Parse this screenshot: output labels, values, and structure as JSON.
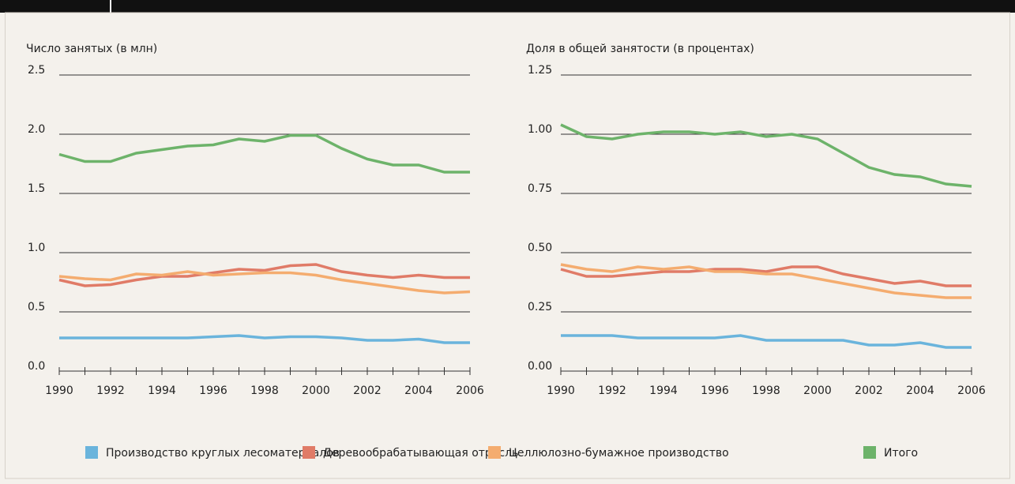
{
  "chart_data": [
    {
      "type": "line",
      "title": "Число занятых (в млн)",
      "x": [
        1990,
        1991,
        1992,
        1993,
        1994,
        1995,
        1996,
        1997,
        1998,
        1999,
        2000,
        2001,
        2002,
        2003,
        2004,
        2005,
        2006
      ],
      "xlim": [
        1990,
        2006
      ],
      "xticks": [
        1990,
        1992,
        1994,
        1996,
        1998,
        2000,
        2002,
        2004,
        2006
      ],
      "ylim": [
        0,
        2.5
      ],
      "yticks": [
        {
          "value": 0,
          "label": "0.0"
        },
        0.5,
        {
          "value": 1,
          "label": "1.0"
        },
        1.5,
        {
          "value": 2,
          "label": "2.0"
        },
        2.5
      ],
      "grid": true,
      "series": [
        {
          "name": "Производство круглых лесоматериалов",
          "color": "#6ab4dc",
          "values": [
            0.28,
            0.28,
            0.28,
            0.28,
            0.28,
            0.28,
            0.29,
            0.3,
            0.28,
            0.29,
            0.29,
            0.28,
            0.26,
            0.26,
            0.27,
            0.24,
            0.24
          ]
        },
        {
          "name": "Деревообрабатывающая отрасль",
          "color": "#e07b67",
          "values": [
            0.77,
            0.72,
            0.73,
            0.77,
            0.8,
            0.8,
            0.83,
            0.86,
            0.85,
            0.89,
            0.9,
            0.84,
            0.81,
            0.79,
            0.81,
            0.79,
            0.79
          ]
        },
        {
          "name": "Целлюлозно-бумажное производство",
          "color": "#f4ac6f",
          "values": [
            0.8,
            0.78,
            0.77,
            0.82,
            0.81,
            0.84,
            0.81,
            0.82,
            0.83,
            0.83,
            0.81,
            0.77,
            0.74,
            0.71,
            0.68,
            0.66,
            0.67
          ]
        },
        {
          "name": "Итого",
          "color": "#6db36a",
          "values": [
            1.83,
            1.77,
            1.77,
            1.84,
            1.87,
            1.9,
            1.91,
            1.96,
            1.94,
            1.99,
            1.99,
            1.88,
            1.79,
            1.74,
            1.74,
            1.68,
            1.68
          ]
        }
      ]
    },
    {
      "type": "line",
      "title": "Доля в общей занятости (в процентах)",
      "x": [
        1990,
        1991,
        1992,
        1993,
        1994,
        1995,
        1996,
        1997,
        1998,
        1999,
        2000,
        2001,
        2002,
        2003,
        2004,
        2005,
        2006
      ],
      "xlim": [
        1990,
        2006
      ],
      "xticks": [
        1990,
        1992,
        1994,
        1996,
        1998,
        2000,
        2002,
        2004,
        2006
      ],
      "ylim": [
        0,
        1.25
      ],
      "yticks": [
        {
          "value": 0,
          "label": "0.00"
        },
        0.25,
        {
          "value": 0.5,
          "label": "0.50"
        },
        0.75,
        {
          "value": 1,
          "label": "1.00"
        },
        1.25
      ],
      "grid": true,
      "series": [
        {
          "name": "Производство круглых лесоматериалов",
          "color": "#6ab4dc",
          "values": [
            0.15,
            0.15,
            0.15,
            0.14,
            0.14,
            0.14,
            0.14,
            0.15,
            0.13,
            0.13,
            0.13,
            0.13,
            0.11,
            0.11,
            0.12,
            0.1,
            0.1
          ]
        },
        {
          "name": "Деревообрабатывающая отрасль",
          "color": "#e07b67",
          "values": [
            0.43,
            0.4,
            0.4,
            0.41,
            0.42,
            0.42,
            0.43,
            0.43,
            0.42,
            0.44,
            0.44,
            0.41,
            0.39,
            0.37,
            0.38,
            0.36,
            0.36
          ]
        },
        {
          "name": "Целлюлозно-бумажное производство",
          "color": "#f4ac6f",
          "values": [
            0.45,
            0.43,
            0.42,
            0.44,
            0.43,
            0.44,
            0.42,
            0.42,
            0.41,
            0.41,
            0.39,
            0.37,
            0.35,
            0.33,
            0.32,
            0.31,
            0.31
          ]
        },
        {
          "name": "Итого",
          "color": "#6db36a",
          "values": [
            1.04,
            0.99,
            0.98,
            1.0,
            1.01,
            1.01,
            1.0,
            1.01,
            0.99,
            1.0,
            0.98,
            0.92,
            0.86,
            0.83,
            0.82,
            0.79,
            0.78
          ]
        }
      ]
    }
  ]
}
